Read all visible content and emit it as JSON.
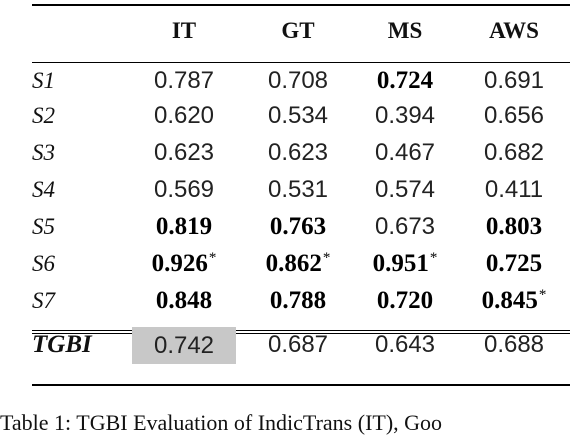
{
  "table": {
    "columns": [
      "",
      "IT",
      "GT",
      "MS",
      "AWS"
    ],
    "rows": [
      {
        "label": "S1",
        "cells": [
          {
            "v": "0.787",
            "b": false,
            "s": ""
          },
          {
            "v": "0.708",
            "b": false,
            "s": ""
          },
          {
            "v": "0.724",
            "b": true,
            "s": ""
          },
          {
            "v": "0.691",
            "b": false,
            "s": ""
          }
        ]
      },
      {
        "label": "S2",
        "cells": [
          {
            "v": "0.620",
            "b": false,
            "s": ""
          },
          {
            "v": "0.534",
            "b": false,
            "s": ""
          },
          {
            "v": "0.394",
            "b": false,
            "s": ""
          },
          {
            "v": "0.656",
            "b": false,
            "s": ""
          }
        ]
      },
      {
        "label": "S3",
        "cells": [
          {
            "v": "0.623",
            "b": false,
            "s": ""
          },
          {
            "v": "0.623",
            "b": false,
            "s": ""
          },
          {
            "v": "0.467",
            "b": false,
            "s": ""
          },
          {
            "v": "0.682",
            "b": false,
            "s": ""
          }
        ]
      },
      {
        "label": "S4",
        "cells": [
          {
            "v": "0.569",
            "b": false,
            "s": ""
          },
          {
            "v": "0.531",
            "b": false,
            "s": ""
          },
          {
            "v": "0.574",
            "b": false,
            "s": ""
          },
          {
            "v": "0.411",
            "b": false,
            "s": ""
          }
        ]
      },
      {
        "label": "S5",
        "cells": [
          {
            "v": "0.819",
            "b": true,
            "s": ""
          },
          {
            "v": "0.763",
            "b": true,
            "s": ""
          },
          {
            "v": "0.673",
            "b": false,
            "s": ""
          },
          {
            "v": "0.803",
            "b": true,
            "s": ""
          }
        ]
      },
      {
        "label": "S6",
        "cells": [
          {
            "v": "0.926",
            "b": true,
            "s": "*"
          },
          {
            "v": "0.862",
            "b": true,
            "s": "*"
          },
          {
            "v": "0.951",
            "b": true,
            "s": "*"
          },
          {
            "v": "0.725",
            "b": true,
            "s": ""
          }
        ]
      },
      {
        "label": "S7",
        "cells": [
          {
            "v": "0.848",
            "b": true,
            "s": ""
          },
          {
            "v": "0.788",
            "b": true,
            "s": ""
          },
          {
            "v": "0.720",
            "b": true,
            "s": ""
          },
          {
            "v": "0.845",
            "b": true,
            "s": "*"
          }
        ]
      }
    ],
    "final": {
      "label": "TGBI",
      "cells": [
        "0.742",
        "0.687",
        "0.643",
        "0.688"
      ],
      "highlight_index": 0
    },
    "highlight_color": "#c8c8c8"
  },
  "caption": "Table 1: TGBI Evaluation of IndicTrans (IT), Goo"
}
